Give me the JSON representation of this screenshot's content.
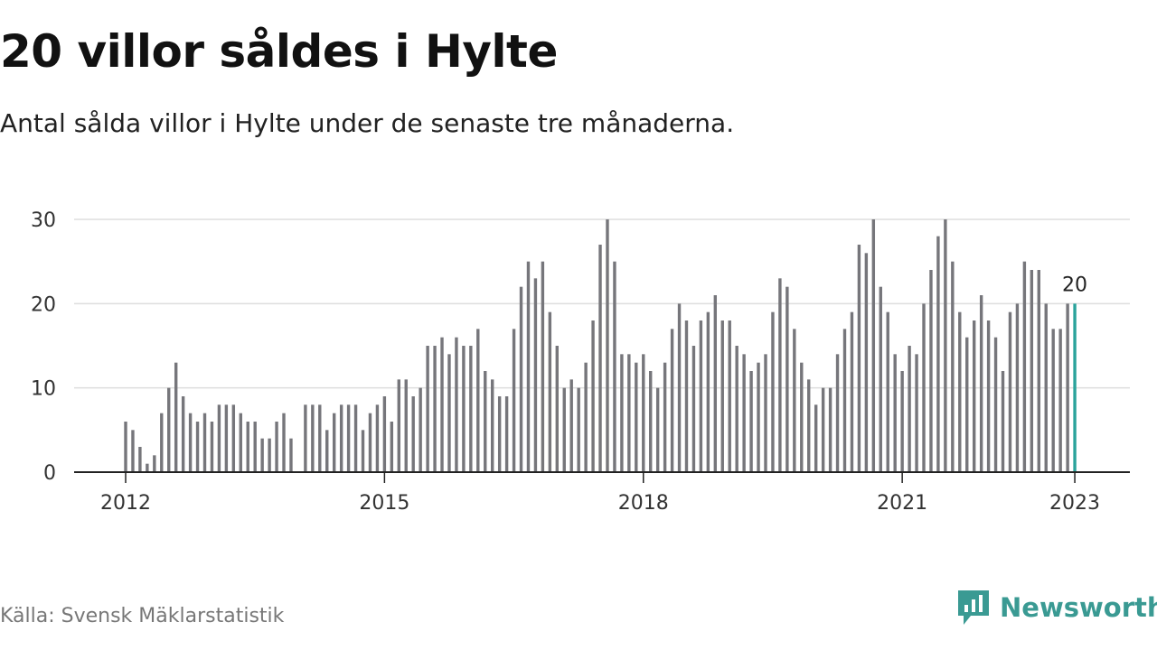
{
  "header": {
    "title": "20 villor såldes i Hylte",
    "subtitle": "Antal sålda villor i Hylte under de senaste tre månaderna."
  },
  "footer": {
    "source": "Källa: Svensk Mäklarstatistik",
    "brand": "Newsworthy"
  },
  "colors": {
    "bar": "#76767b",
    "highlight": "#2aa39b",
    "grid": "#dddddd",
    "axis": "#222222",
    "brand": "#3a9a93"
  },
  "chart_data": {
    "type": "bar",
    "start": "2012-01",
    "frequency": "monthly",
    "values": [
      6,
      5,
      3,
      1,
      2,
      7,
      10,
      13,
      9,
      7,
      6,
      7,
      6,
      8,
      8,
      8,
      7,
      6,
      6,
      4,
      4,
      6,
      7,
      4,
      null,
      8,
      8,
      8,
      5,
      7,
      8,
      8,
      8,
      5,
      7,
      8,
      9,
      6,
      11,
      11,
      9,
      10,
      15,
      15,
      16,
      14,
      16,
      15,
      15,
      17,
      12,
      11,
      9,
      9,
      17,
      22,
      25,
      23,
      25,
      19,
      15,
      10,
      11,
      10,
      13,
      18,
      27,
      30,
      25,
      14,
      14,
      13,
      14,
      12,
      10,
      13,
      17,
      20,
      18,
      15,
      18,
      19,
      21,
      18,
      18,
      15,
      14,
      12,
      13,
      14,
      19,
      23,
      22,
      17,
      13,
      11,
      8,
      10,
      10,
      14,
      17,
      19,
      27,
      26,
      30,
      22,
      19,
      14,
      12,
      15,
      14,
      20,
      24,
      28,
      30,
      25,
      19,
      16,
      18,
      21,
      18,
      16,
      12,
      19,
      20,
      25,
      24,
      24,
      20,
      17,
      17,
      20,
      20
    ],
    "highlight_last": true,
    "highlight_value_label": "20",
    "ylim": [
      0,
      30
    ],
    "yticks": [
      0,
      10,
      20,
      30
    ],
    "xticks": [
      {
        "label": "2012",
        "index": 0
      },
      {
        "label": "2015",
        "index": 36
      },
      {
        "label": "2018",
        "index": 72
      },
      {
        "label": "2021",
        "index": 108
      },
      {
        "label": "2023",
        "index": 132
      }
    ],
    "grid": true,
    "title": "",
    "xlabel": "",
    "ylabel": ""
  }
}
